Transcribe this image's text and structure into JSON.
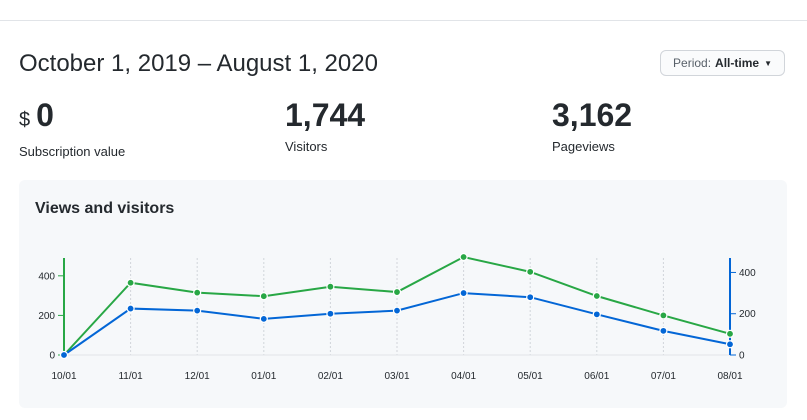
{
  "header": {
    "date_range": "October 1, 2019 – August 1, 2020",
    "period_label": "Period:",
    "period_value": "All-time",
    "caret_icon": "caret-down-icon"
  },
  "stats": [
    {
      "currency": "$",
      "value": "0",
      "caption": "Subscription value"
    },
    {
      "value": "1,744",
      "caption": "Visitors"
    },
    {
      "value": "3,162",
      "caption": "Pageviews"
    }
  ],
  "colors": {
    "views": "#28a745",
    "visitors": "#0366d6",
    "grid": "#d1d5da",
    "background": "#f6f8fa"
  },
  "chart_data": {
    "type": "line",
    "title": "Views and visitors",
    "x": [
      "10/01",
      "11/01",
      "12/01",
      "01/01",
      "02/01",
      "03/01",
      "04/01",
      "05/01",
      "06/01",
      "07/01",
      "08/01"
    ],
    "series": [
      {
        "values": [
          0,
          365,
          315,
          297,
          345,
          318,
          495,
          420,
          298,
          200,
          107
        ]
      },
      {
        "values": [
          0,
          225,
          215,
          175,
          200,
          215,
          300,
          280,
          197,
          117,
          52
        ]
      }
    ],
    "y_left": {
      "ticks": [
        0,
        200,
        400
      ],
      "ylim": [
        0,
        490
      ]
    },
    "y_right": {
      "ticks": [
        0,
        200,
        400
      ],
      "ylim": [
        0,
        470
      ]
    },
    "grid": "vertical",
    "legend": "none"
  }
}
